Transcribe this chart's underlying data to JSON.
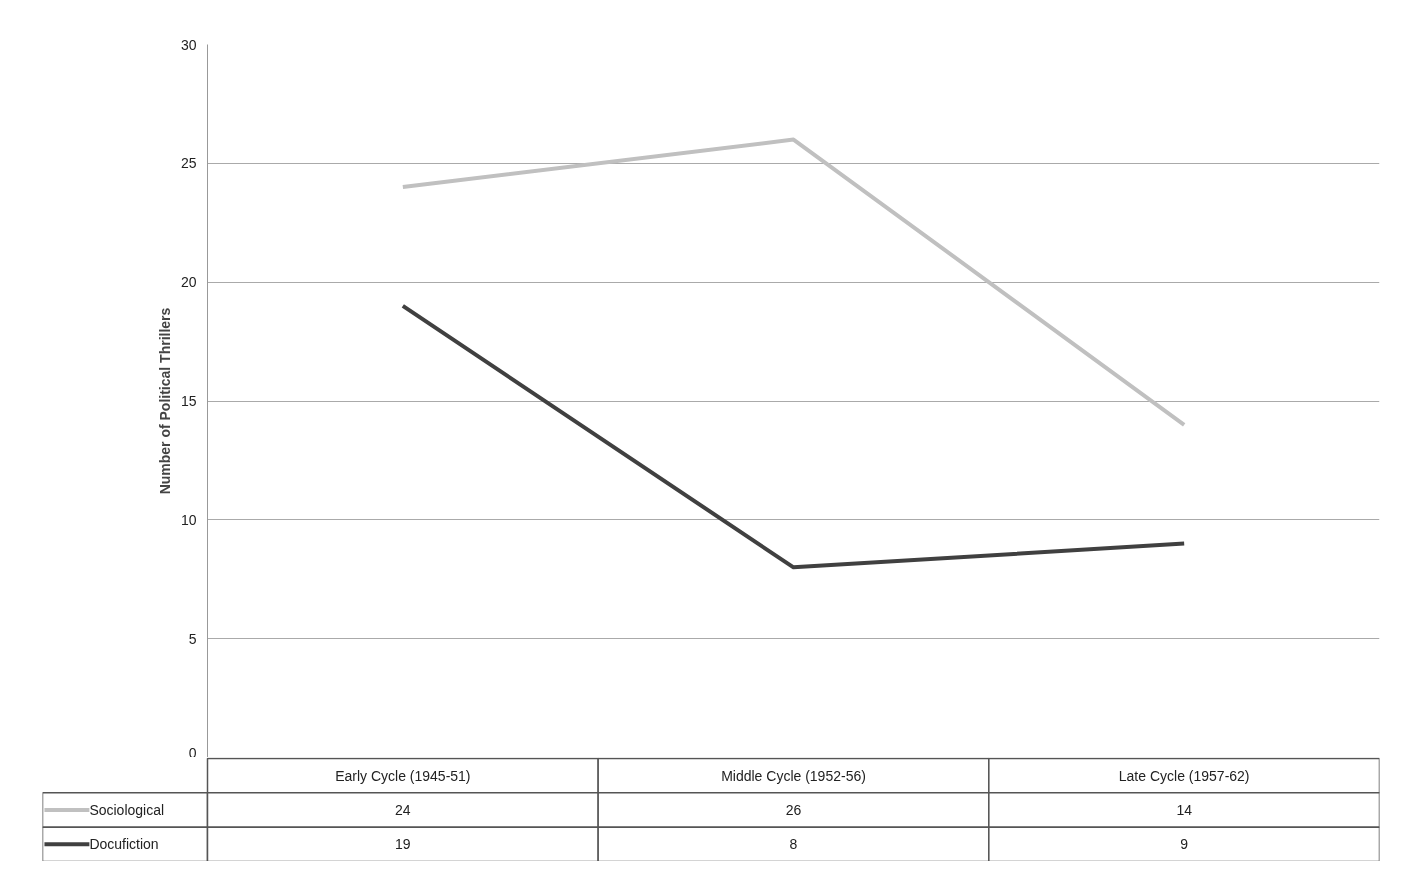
{
  "chart_data": {
    "type": "line",
    "ylabel": "Number of Political Thrillers",
    "categories": [
      "Early Cycle (1945-51)",
      "Middle Cycle (1952-56)",
      "Late Cycle (1957-62)"
    ],
    "series": [
      {
        "name": "Sociological",
        "color": "#c0c0c0",
        "values": [
          24,
          26,
          14
        ]
      },
      {
        "name": "Docufiction",
        "color": "#404040",
        "values": [
          19,
          8,
          9
        ]
      }
    ],
    "ylim": [
      0,
      30
    ],
    "yticks": [
      0,
      5,
      10,
      15,
      20,
      25,
      30
    ],
    "grid": "y",
    "data_labels": true,
    "legend": "bottom left"
  }
}
